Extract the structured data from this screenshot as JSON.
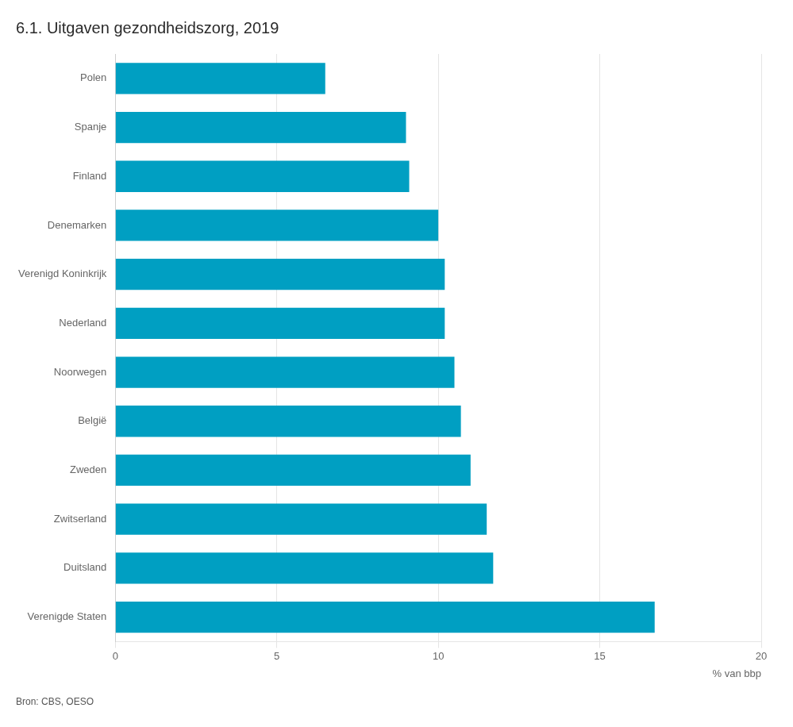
{
  "chart_data": {
    "type": "bar",
    "orientation": "horizontal",
    "title": "6.1. Uitgaven gezondheidszorg, 2019",
    "categories": [
      "Polen",
      "Spanje",
      "Finland",
      "Denemarken",
      "Verenigd Koninkrijk",
      "Nederland",
      "Noorwegen",
      "België",
      "Zweden",
      "Zwitserland",
      "Duitsland",
      "Verenigde Staten"
    ],
    "values": [
      6.5,
      9.0,
      9.1,
      10.0,
      10.2,
      10.2,
      10.5,
      10.7,
      11.0,
      11.5,
      11.7,
      16.7
    ],
    "color": "#009FC2",
    "xlabel": "% van bbp",
    "xlim": [
      0,
      20
    ],
    "xticks": [
      0,
      5,
      10,
      15,
      20
    ],
    "grid": true,
    "annotations": [
      "Bron: CBS, OESO"
    ]
  }
}
